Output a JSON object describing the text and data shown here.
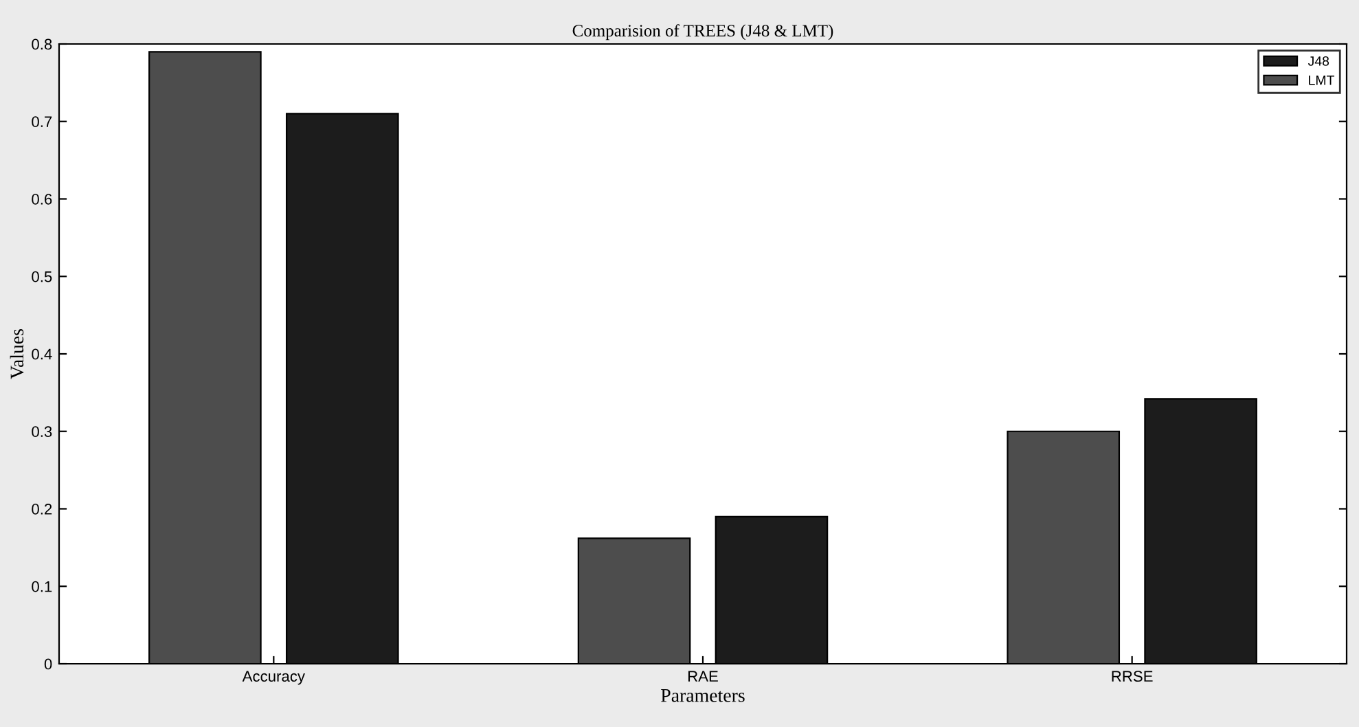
{
  "chart_data": {
    "type": "bar",
    "title": "Comparision of TREES (J48 & LMT)",
    "xlabel": "Parameters",
    "ylabel": "Values",
    "categories": [
      "Accuracy",
      "RAE",
      "RRSE"
    ],
    "series": [
      {
        "name": "LMT",
        "color": "#4d4d4d",
        "values": [
          0.79,
          0.162,
          0.3
        ]
      },
      {
        "name": "J48",
        "color": "#1c1c1c",
        "values": [
          0.71,
          0.19,
          0.342
        ]
      }
    ],
    "ylim": [
      0,
      0.8
    ],
    "yticks": [
      0,
      0.1,
      0.2,
      0.3,
      0.4,
      0.5,
      0.6,
      0.7,
      0.8
    ],
    "grid": false,
    "legend": "top right"
  }
}
